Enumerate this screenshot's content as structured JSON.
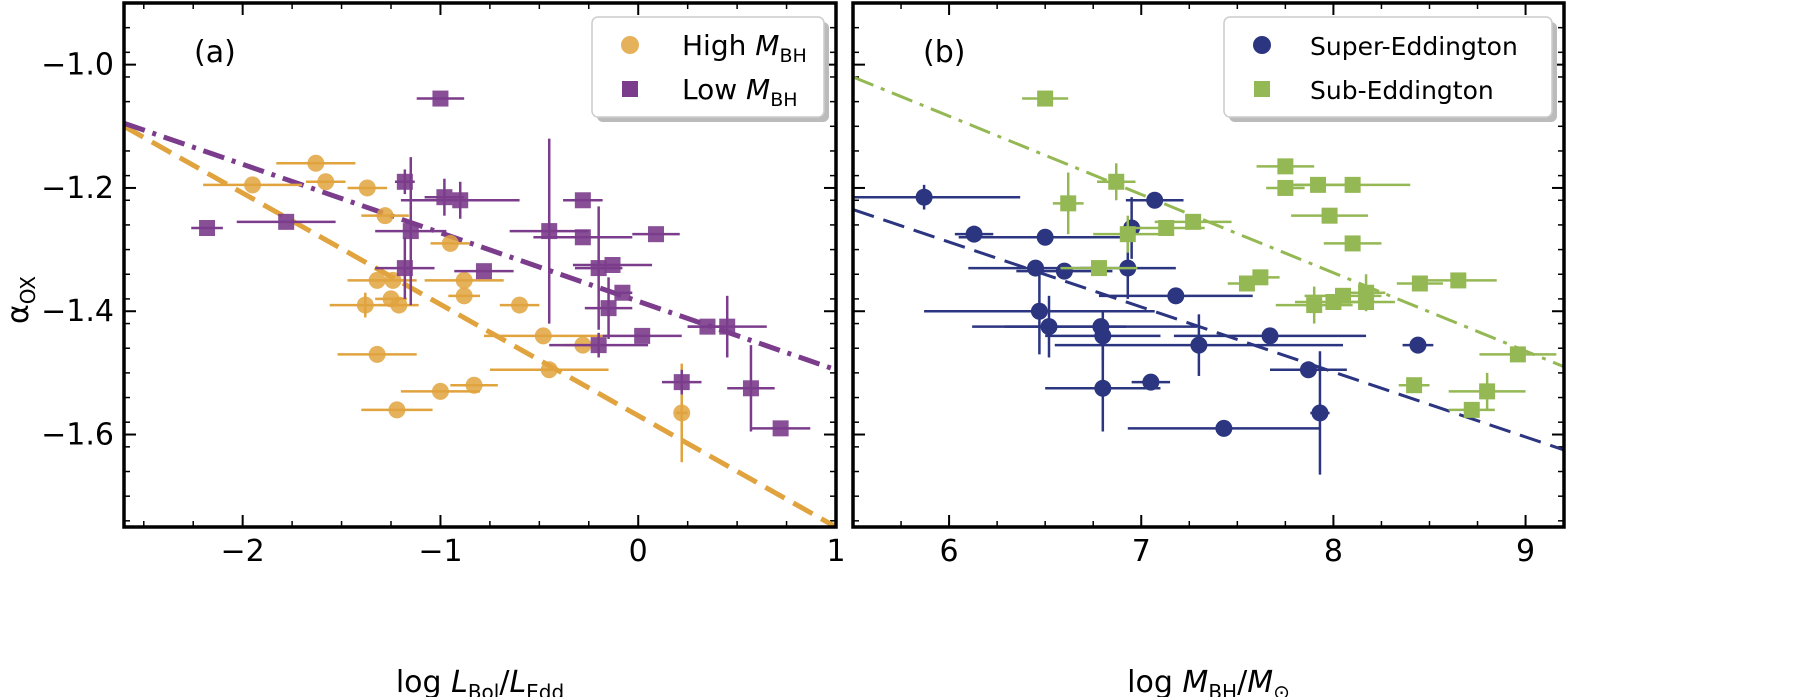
{
  "y_axis_label_main": "α",
  "y_axis_label_sub": "OX",
  "chart_data": [
    {
      "type": "scatter",
      "panel_label": "(a)",
      "xlabel": {
        "pre": "log ",
        "L1": "L",
        "s1": "Bol",
        "slash": "/",
        "L2": "L",
        "s2": "Edd"
      },
      "xlim": [
        -2.6,
        1.0
      ],
      "ylim": [
        -1.75,
        -0.9
      ],
      "xticks": [
        -2,
        -1,
        0,
        1
      ],
      "xtick_labels": [
        "−2",
        "−1",
        "0",
        "1"
      ],
      "yticks": [
        -1.0,
        -1.2,
        -1.4,
        -1.6
      ],
      "ytick_labels": [
        "−1.0",
        "−1.2",
        "−1.4",
        "−1.6"
      ],
      "legend": {
        "position": "top-right",
        "entries": [
          {
            "pre": "High ",
            "m": "M",
            "sub": "BH"
          },
          {
            "pre": "Low ",
            "m": "M",
            "sub": "BH"
          }
        ]
      },
      "series": [
        {
          "legend_index": 0,
          "marker": "circle",
          "color": "#e0a33e",
          "points": [
            {
              "x": -1.95,
              "y": -1.195,
              "xerr": 0.25,
              "yerr": 0
            },
            {
              "x": -1.63,
              "y": -1.16,
              "xerr": 0.2,
              "yerr": 0
            },
            {
              "x": -1.58,
              "y": -1.19,
              "xerr": 0.1,
              "yerr": 0
            },
            {
              "x": -1.37,
              "y": -1.2,
              "xerr": 0.1,
              "yerr": 0
            },
            {
              "x": -1.28,
              "y": -1.245,
              "xerr": 0.12,
              "yerr": 0
            },
            {
              "x": -1.32,
              "y": -1.35,
              "xerr": 0.15,
              "yerr": 0
            },
            {
              "x": -1.24,
              "y": -1.35,
              "xerr": 0.12,
              "yerr": 0
            },
            {
              "x": -1.25,
              "y": -1.38,
              "xerr": 0.08,
              "yerr": 0
            },
            {
              "x": -1.38,
              "y": -1.39,
              "xerr": 0.18,
              "yerr": 0.02
            },
            {
              "x": -1.21,
              "y": -1.39,
              "xerr": 0.1,
              "yerr": 0
            },
            {
              "x": -1.32,
              "y": -1.47,
              "xerr": 0.2,
              "yerr": 0
            },
            {
              "x": -0.88,
              "y": -1.35,
              "xerr": 0.2,
              "yerr": 0
            },
            {
              "x": -0.88,
              "y": -1.375,
              "xerr": 0.08,
              "yerr": 0
            },
            {
              "x": -0.95,
              "y": -1.29,
              "xerr": 0.1,
              "yerr": 0
            },
            {
              "x": -1.22,
              "y": -1.56,
              "xerr": 0.18,
              "yerr": 0
            },
            {
              "x": -1.0,
              "y": -1.53,
              "xerr": 0.2,
              "yerr": 0
            },
            {
              "x": -0.83,
              "y": -1.52,
              "xerr": 0.12,
              "yerr": 0
            },
            {
              "x": -0.6,
              "y": -1.39,
              "xerr": 0.1,
              "yerr": 0
            },
            {
              "x": -0.48,
              "y": -1.44,
              "xerr": 0.3,
              "yerr": 0
            },
            {
              "x": -0.45,
              "y": -1.495,
              "xerr": 0.3,
              "yerr": 0
            },
            {
              "x": -0.28,
              "y": -1.455,
              "xerr": 0.1,
              "yerr": 0
            },
            {
              "x": 0.22,
              "y": -1.565,
              "xerr": 0.03,
              "yerr": 0.08
            }
          ]
        },
        {
          "legend_index": 1,
          "marker": "square",
          "color": "#7b3c8c",
          "points": [
            {
              "x": -2.18,
              "y": -1.265,
              "xerr": 0.08,
              "yerr": 0
            },
            {
              "x": -1.78,
              "y": -1.255,
              "xerr": 0.25,
              "yerr": 0
            },
            {
              "x": -1.18,
              "y": -1.19,
              "xerr": 0.05,
              "yerr": 0.02
            },
            {
              "x": -1.15,
              "y": -1.27,
              "xerr": 0.18,
              "yerr": 0.12
            },
            {
              "x": -1.18,
              "y": -1.33,
              "xerr": 0.15,
              "yerr": 0.05
            },
            {
              "x": -1.0,
              "y": -1.055,
              "xerr": 0.12,
              "yerr": 0
            },
            {
              "x": -0.98,
              "y": -1.215,
              "xerr": 0.1,
              "yerr": 0.03
            },
            {
              "x": -0.9,
              "y": -1.22,
              "xerr": 0.3,
              "yerr": 0.03
            },
            {
              "x": -0.78,
              "y": -1.335,
              "xerr": 0.15,
              "yerr": 0
            },
            {
              "x": -0.45,
              "y": -1.27,
              "xerr": 0.2,
              "yerr": 0.15
            },
            {
              "x": -0.28,
              "y": -1.22,
              "xerr": 0.1,
              "yerr": 0
            },
            {
              "x": -0.28,
              "y": -1.28,
              "xerr": 0.25,
              "yerr": 0
            },
            {
              "x": -0.2,
              "y": -1.33,
              "xerr": 0.12,
              "yerr": 0.1
            },
            {
              "x": -0.13,
              "y": -1.325,
              "xerr": 0.2,
              "yerr": 0
            },
            {
              "x": -0.15,
              "y": -1.395,
              "xerr": 0.12,
              "yerr": 0.05
            },
            {
              "x": -0.08,
              "y": -1.37,
              "xerr": 0.05,
              "yerr": 0
            },
            {
              "x": -0.2,
              "y": -1.455,
              "xerr": 0.25,
              "yerr": 0.02
            },
            {
              "x": 0.02,
              "y": -1.44,
              "xerr": 0.2,
              "yerr": 0
            },
            {
              "x": 0.09,
              "y": -1.275,
              "xerr": 0.12,
              "yerr": 0
            },
            {
              "x": 0.35,
              "y": -1.425,
              "xerr": 0.1,
              "yerr": 0
            },
            {
              "x": 0.45,
              "y": -1.425,
              "xerr": 0.2,
              "yerr": 0.05
            },
            {
              "x": 0.22,
              "y": -1.515,
              "xerr": 0.1,
              "yerr": 0.02
            },
            {
              "x": 0.57,
              "y": -1.525,
              "xerr": 0.12,
              "yerr": 0.07
            },
            {
              "x": 0.72,
              "y": -1.59,
              "xerr": 0.15,
              "yerr": 0
            }
          ]
        }
      ],
      "fit_lines": [
        {
          "color": "#e0a33e",
          "dash": "dashed",
          "x": [
            -2.6,
            1.0
          ],
          "y": [
            -1.1,
            -1.75
          ]
        },
        {
          "color": "#7b3c8c",
          "dash": "dashdot",
          "x": [
            -2.6,
            1.0
          ],
          "y": [
            -1.095,
            -1.495
          ]
        }
      ]
    },
    {
      "type": "scatter",
      "panel_label": "(b)",
      "xlabel": {
        "pre": "log ",
        "L1": "M",
        "s1": "BH",
        "slash": "/",
        "L2": "M",
        "s2": "⊙"
      },
      "xlim": [
        5.5,
        9.2
      ],
      "ylim": [
        -1.75,
        -0.9
      ],
      "xticks": [
        6,
        7,
        8,
        9
      ],
      "xtick_labels": [
        "6",
        "7",
        "8",
        "9"
      ],
      "yticks": [
        -1.0,
        -1.2,
        -1.4,
        -1.6
      ],
      "ytick_labels": [
        "",
        "",
        "",
        ""
      ],
      "legend": {
        "position": "top-right",
        "entries": [
          {
            "pre": "Super-Eddington",
            "m": "",
            "sub": ""
          },
          {
            "pre": "Sub-Eddington",
            "m": "",
            "sub": ""
          }
        ]
      },
      "series": [
        {
          "legend_index": 0,
          "marker": "circle",
          "color": "#2b3580",
          "points": [
            {
              "x": 5.87,
              "y": -1.215,
              "xerr": 0.5,
              "yerr": 0.02
            },
            {
              "x": 6.13,
              "y": -1.275,
              "xerr": 0.1,
              "yerr": 0
            },
            {
              "x": 6.5,
              "y": -1.28,
              "xerr": 0.45,
              "yerr": 0
            },
            {
              "x": 6.45,
              "y": -1.33,
              "xerr": 0.35,
              "yerr": 0
            },
            {
              "x": 6.6,
              "y": -1.335,
              "xerr": 0.25,
              "yerr": 0
            },
            {
              "x": 6.93,
              "y": -1.33,
              "xerr": 0.25,
              "yerr": 0.05
            },
            {
              "x": 6.95,
              "y": -1.265,
              "xerr": 0.05,
              "yerr": 0.05
            },
            {
              "x": 7.07,
              "y": -1.22,
              "xerr": 0.15,
              "yerr": 0
            },
            {
              "x": 7.18,
              "y": -1.375,
              "xerr": 0.4,
              "yerr": 0
            },
            {
              "x": 6.47,
              "y": -1.4,
              "xerr": 0.6,
              "yerr": 0.07
            },
            {
              "x": 6.52,
              "y": -1.425,
              "xerr": 0.4,
              "yerr": 0.05
            },
            {
              "x": 6.79,
              "y": -1.425,
              "xerr": 0.5,
              "yerr": 0
            },
            {
              "x": 6.8,
              "y": -1.44,
              "xerr": 0.3,
              "yerr": 0.04
            },
            {
              "x": 6.8,
              "y": -1.525,
              "xerr": 0.3,
              "yerr": 0.07
            },
            {
              "x": 7.05,
              "y": -1.515,
              "xerr": 0.1,
              "yerr": 0
            },
            {
              "x": 7.3,
              "y": -1.455,
              "xerr": 0.75,
              "yerr": 0.05
            },
            {
              "x": 7.67,
              "y": -1.44,
              "xerr": 0.5,
              "yerr": 0
            },
            {
              "x": 7.87,
              "y": -1.495,
              "xerr": 0.2,
              "yerr": 0
            },
            {
              "x": 7.93,
              "y": -1.565,
              "xerr": 0.05,
              "yerr": 0.1
            },
            {
              "x": 7.43,
              "y": -1.59,
              "xerr": 0.5,
              "yerr": 0
            },
            {
              "x": 8.44,
              "y": -1.455,
              "xerr": 0.08,
              "yerr": 0
            }
          ]
        },
        {
          "legend_index": 1,
          "marker": "square",
          "color": "#94b853",
          "points": [
            {
              "x": 6.5,
              "y": -1.055,
              "xerr": 0.12,
              "yerr": 0
            },
            {
              "x": 6.62,
              "y": -1.225,
              "xerr": 0.08,
              "yerr": 0.05
            },
            {
              "x": 6.87,
              "y": -1.19,
              "xerr": 0.1,
              "yerr": 0.03
            },
            {
              "x": 6.78,
              "y": -1.33,
              "xerr": 0.2,
              "yerr": 0
            },
            {
              "x": 6.93,
              "y": -1.275,
              "xerr": 0.18,
              "yerr": 0.03
            },
            {
              "x": 7.13,
              "y": -1.265,
              "xerr": 0.2,
              "yerr": 0
            },
            {
              "x": 7.27,
              "y": -1.255,
              "xerr": 0.2,
              "yerr": 0
            },
            {
              "x": 7.55,
              "y": -1.355,
              "xerr": 0.1,
              "yerr": 0
            },
            {
              "x": 7.62,
              "y": -1.345,
              "xerr": 0.1,
              "yerr": 0
            },
            {
              "x": 7.75,
              "y": -1.165,
              "xerr": 0.15,
              "yerr": 0
            },
            {
              "x": 7.75,
              "y": -1.2,
              "xerr": 0.1,
              "yerr": 0
            },
            {
              "x": 7.92,
              "y": -1.195,
              "xerr": 0.2,
              "yerr": 0
            },
            {
              "x": 7.98,
              "y": -1.245,
              "xerr": 0.2,
              "yerr": 0
            },
            {
              "x": 8.1,
              "y": -1.195,
              "xerr": 0.3,
              "yerr": 0
            },
            {
              "x": 8.1,
              "y": -1.29,
              "xerr": 0.15,
              "yerr": 0
            },
            {
              "x": 7.9,
              "y": -1.39,
              "xerr": 0.2,
              "yerr": 0.03
            },
            {
              "x": 8.0,
              "y": -1.385,
              "xerr": 0.2,
              "yerr": 0
            },
            {
              "x": 8.05,
              "y": -1.375,
              "xerr": 0.2,
              "yerr": 0
            },
            {
              "x": 8.17,
              "y": -1.37,
              "xerr": 0.1,
              "yerr": 0.03
            },
            {
              "x": 8.17,
              "y": -1.385,
              "xerr": 0.15,
              "yerr": 0
            },
            {
              "x": 8.45,
              "y": -1.355,
              "xerr": 0.12,
              "yerr": 0
            },
            {
              "x": 8.65,
              "y": -1.35,
              "xerr": 0.2,
              "yerr": 0
            },
            {
              "x": 8.42,
              "y": -1.52,
              "xerr": 0.08,
              "yerr": 0
            },
            {
              "x": 8.72,
              "y": -1.56,
              "xerr": 0.12,
              "yerr": 0
            },
            {
              "x": 8.8,
              "y": -1.53,
              "xerr": 0.2,
              "yerr": 0.03
            },
            {
              "x": 8.96,
              "y": -1.47,
              "xerr": 0.2,
              "yerr": 0
            }
          ]
        }
      ],
      "fit_lines": [
        {
          "color": "#2b3580",
          "dash": "dashed",
          "x": [
            5.5,
            9.2
          ],
          "y": [
            -1.235,
            -1.625
          ]
        },
        {
          "color": "#94b853",
          "dash": "dashdot",
          "x": [
            5.5,
            9.2
          ],
          "y": [
            -1.02,
            -1.49
          ]
        }
      ]
    }
  ]
}
